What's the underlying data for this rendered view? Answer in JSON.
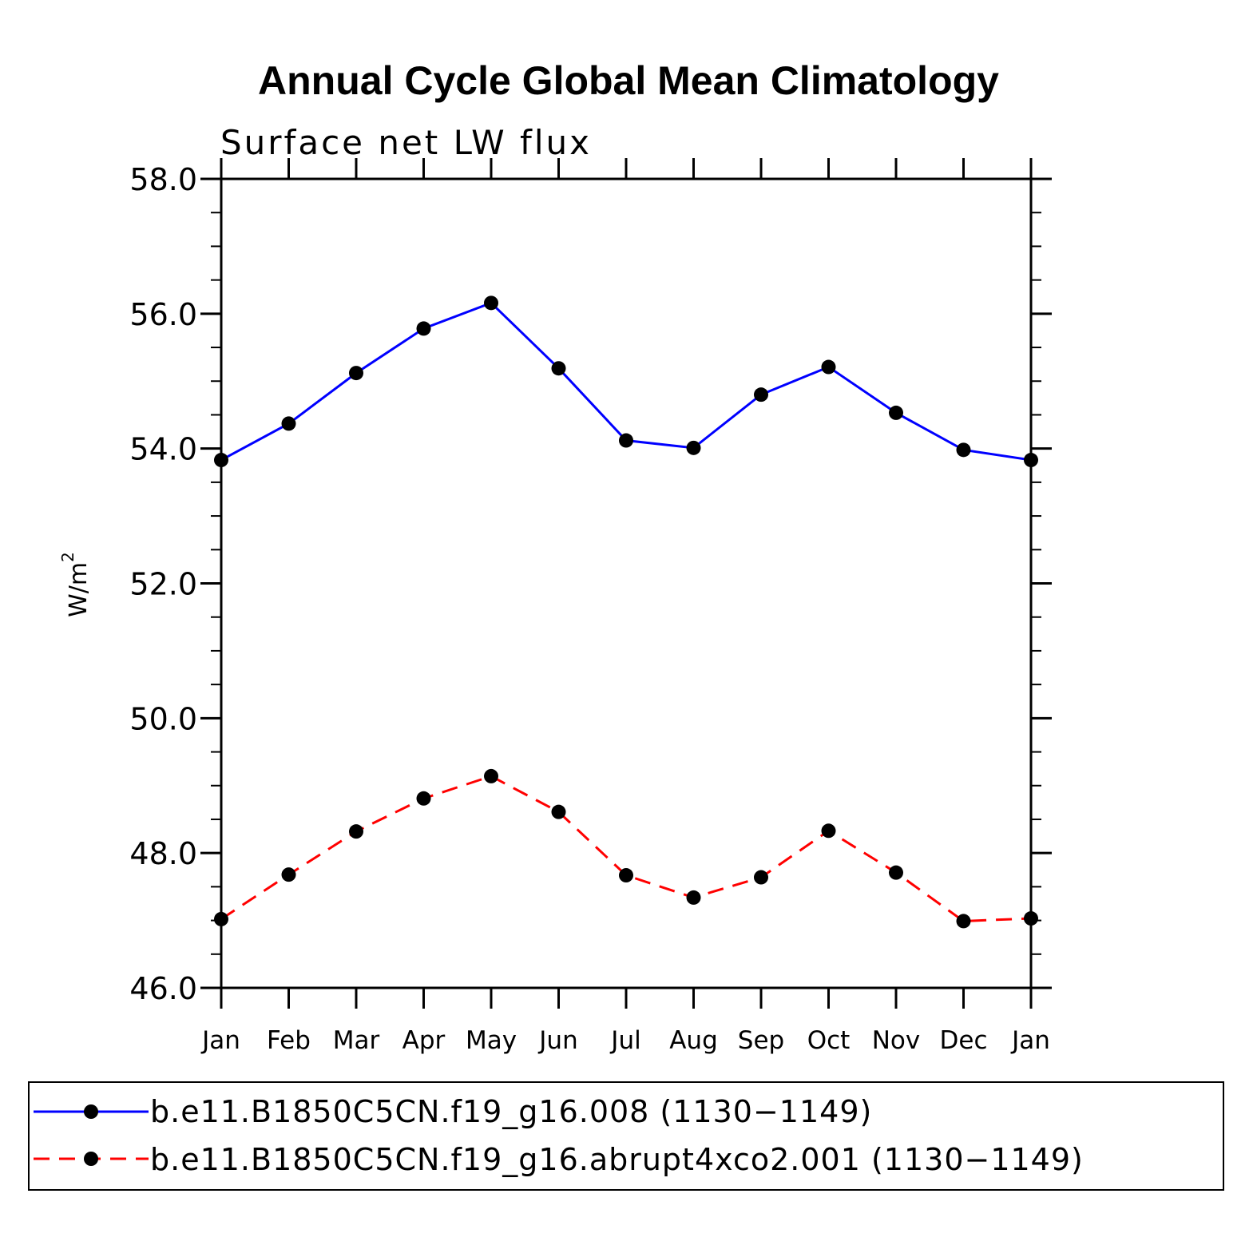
{
  "chart_data": {
    "type": "line",
    "title": "Annual Cycle Global Mean Climatology",
    "subtitle": "Surface net LW flux",
    "ylabel": "W/m",
    "ylabel_superscript": "2",
    "ylim": [
      46.0,
      58.0
    ],
    "yticks": [
      "46.0",
      "48.0",
      "50.0",
      "52.0",
      "54.0",
      "56.0",
      "58.0"
    ],
    "ytick_values": [
      46,
      48,
      50,
      52,
      54,
      56,
      58
    ],
    "categories": [
      "Jan",
      "Feb",
      "Mar",
      "Apr",
      "May",
      "Jun",
      "Jul",
      "Aug",
      "Sep",
      "Oct",
      "Nov",
      "Dec",
      "Jan"
    ],
    "series": [
      {
        "name": "b.e11.B1850C5CN.f19_g16.008 (1130−1149)",
        "color": "#0000ff",
        "style": "solid",
        "values": [
          53.83,
          54.37,
          55.12,
          55.78,
          56.16,
          55.19,
          54.12,
          54.01,
          54.8,
          55.21,
          54.53,
          53.98,
          53.83
        ]
      },
      {
        "name": "b.e11.B1850C5CN.f19_g16.abrupt4xco2.001 (1130−1149)",
        "color": "#ff0000",
        "style": "dashed",
        "values": [
          47.02,
          47.68,
          48.32,
          48.81,
          49.14,
          48.61,
          47.67,
          47.34,
          47.64,
          48.33,
          47.71,
          46.99,
          47.03
        ]
      }
    ],
    "grid": false,
    "legend": "bottom"
  }
}
